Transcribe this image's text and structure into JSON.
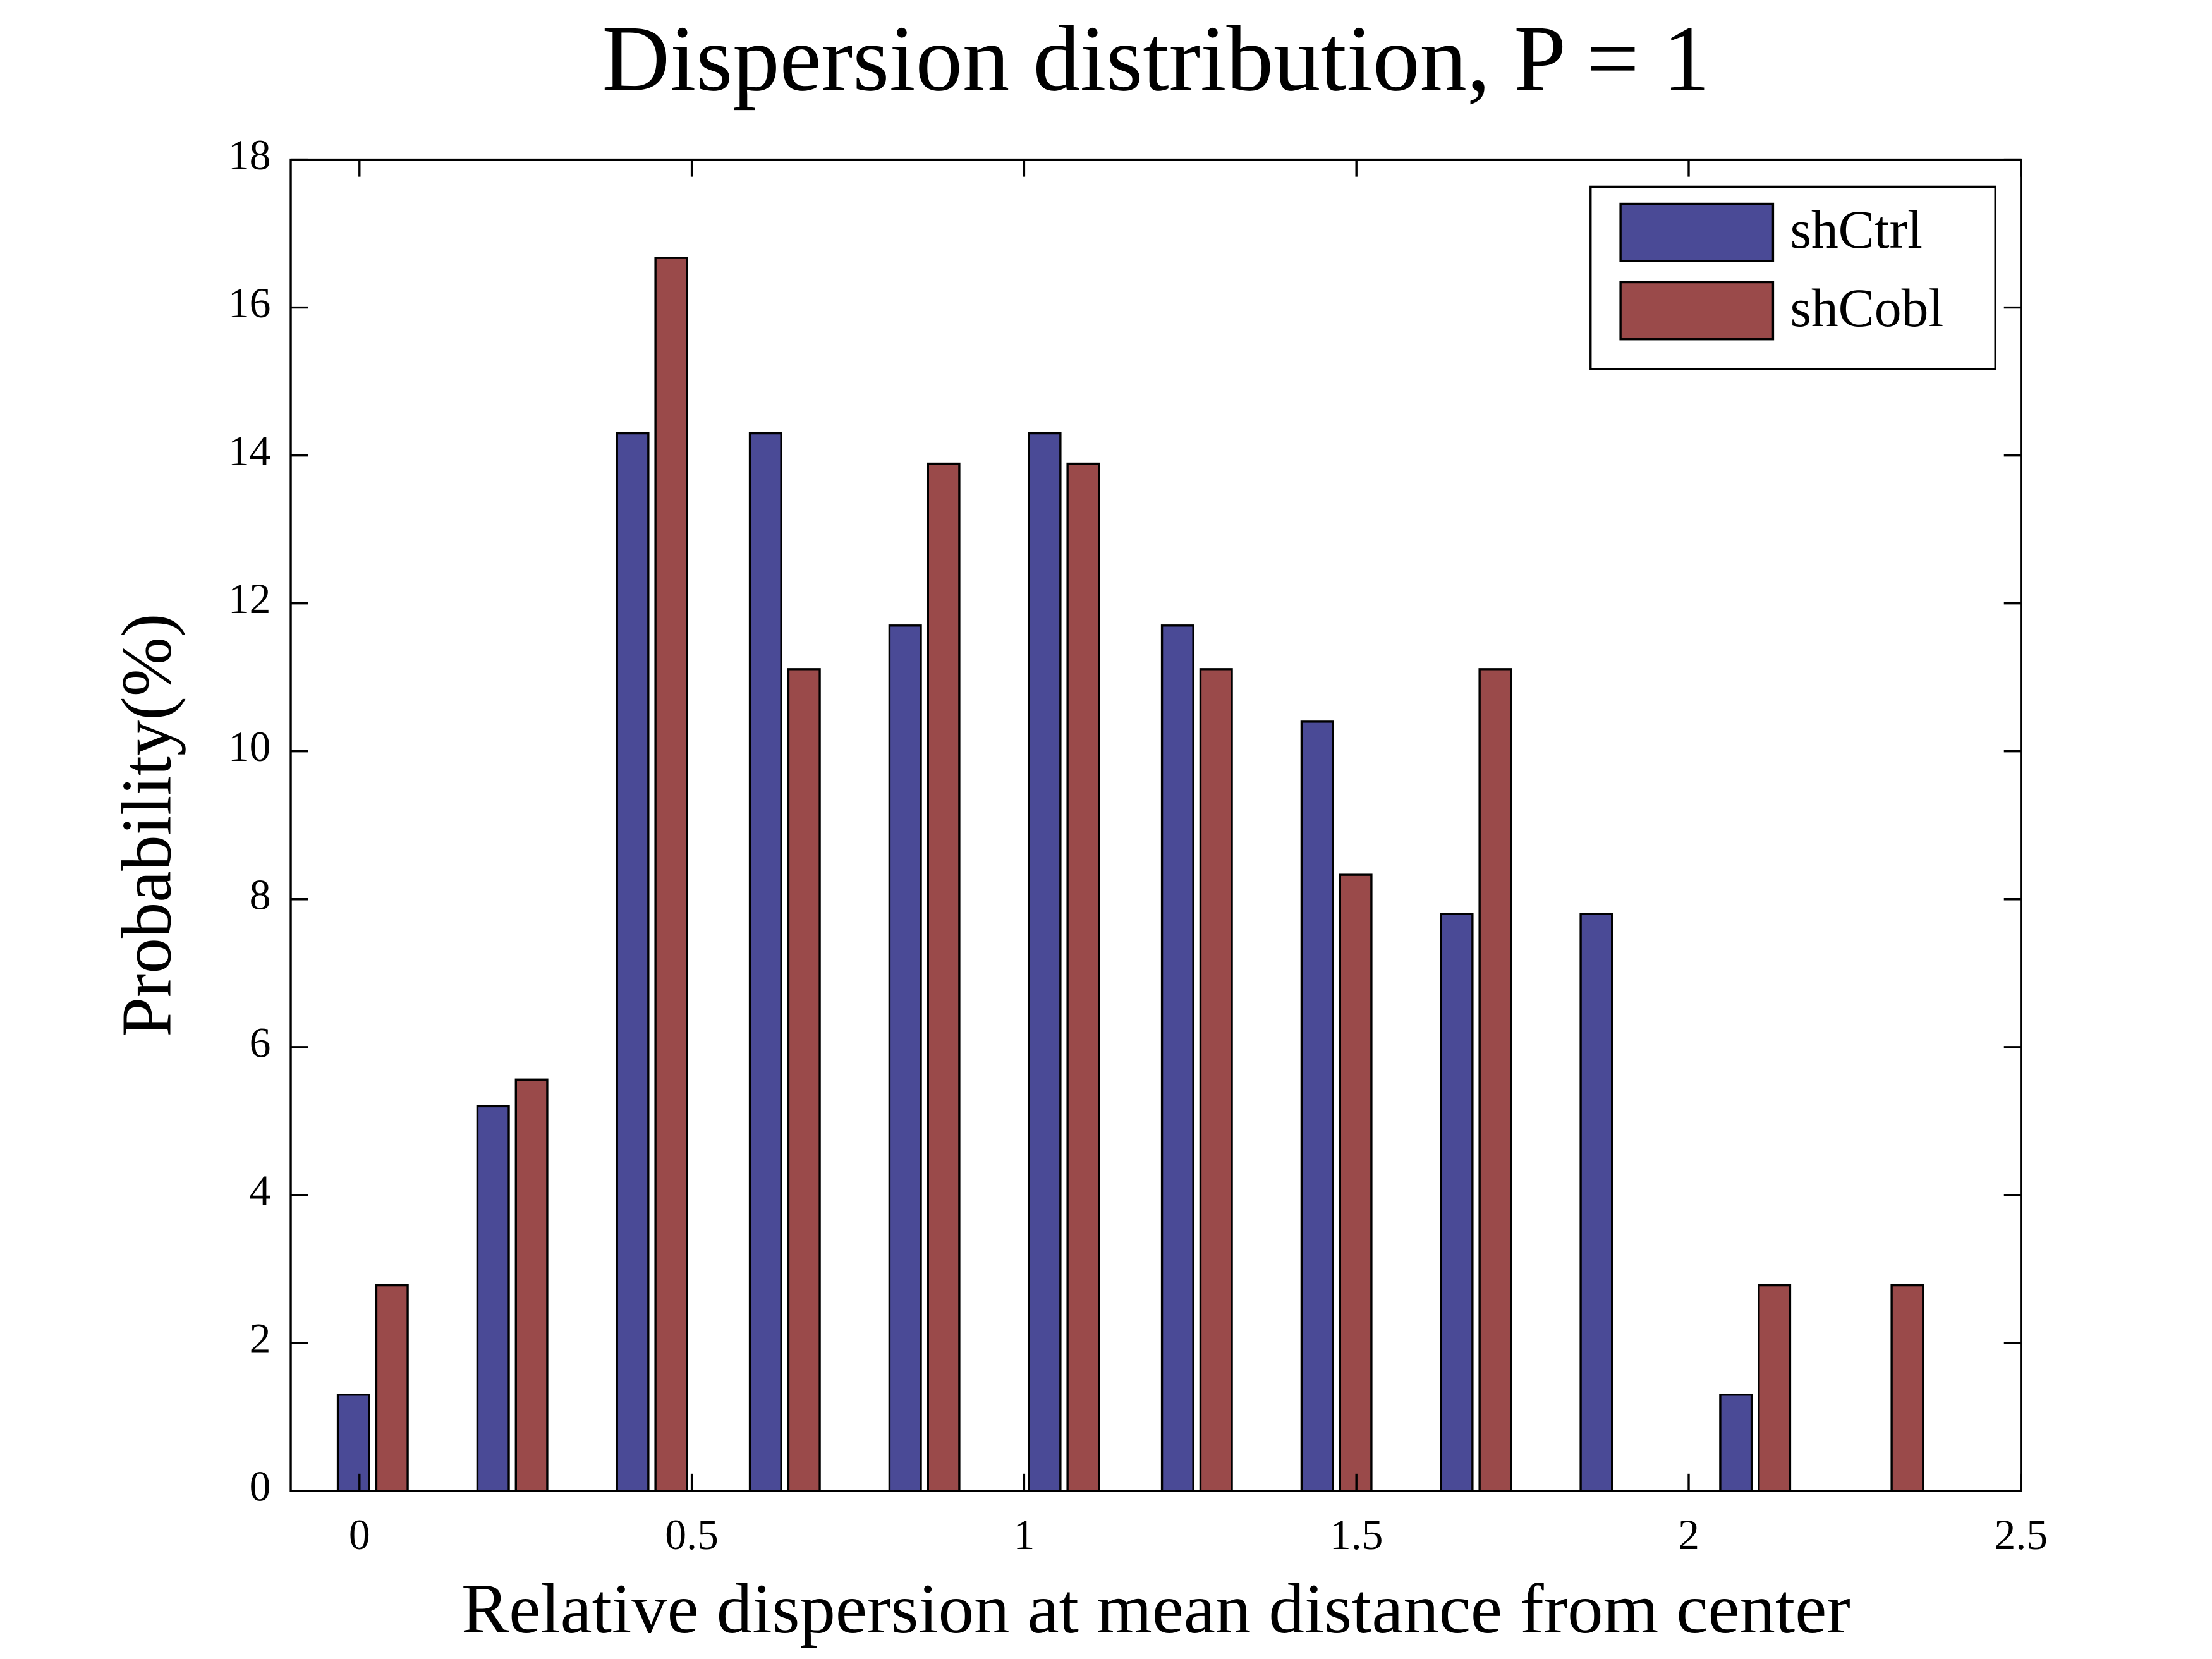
{
  "chart_data": {
    "type": "bar",
    "title": "Dispersion distribution, P = 1",
    "x_label": "Relative dispersion at mean distance from center",
    "y_label": "Probability(%)",
    "x": [
      0.02,
      0.23,
      0.44,
      0.64,
      0.85,
      1.06,
      1.26,
      1.47,
      1.68,
      1.89,
      2.1,
      2.3
    ],
    "series": [
      {
        "name": "shCtrl",
        "color": "#4a4a96",
        "values": [
          1.3,
          5.2,
          14.3,
          14.3,
          11.7,
          14.3,
          11.7,
          10.4,
          7.8,
          7.8,
          1.3,
          0
        ]
      },
      {
        "name": "shCobl",
        "color": "#9a4a4a",
        "values": [
          2.78,
          5.56,
          16.67,
          11.11,
          13.89,
          13.89,
          11.11,
          8.33,
          11.11,
          0,
          2.78,
          2.78
        ]
      }
    ],
    "xlim": [
      -0.1034,
      2.5
    ],
    "ylim": [
      0,
      18
    ],
    "xticks": [
      0,
      0.5,
      1,
      1.5,
      2,
      2.5
    ],
    "yticks": [
      0,
      2,
      4,
      6,
      8,
      10,
      12,
      14,
      16,
      18
    ],
    "grid": false,
    "legend": "northeast"
  }
}
